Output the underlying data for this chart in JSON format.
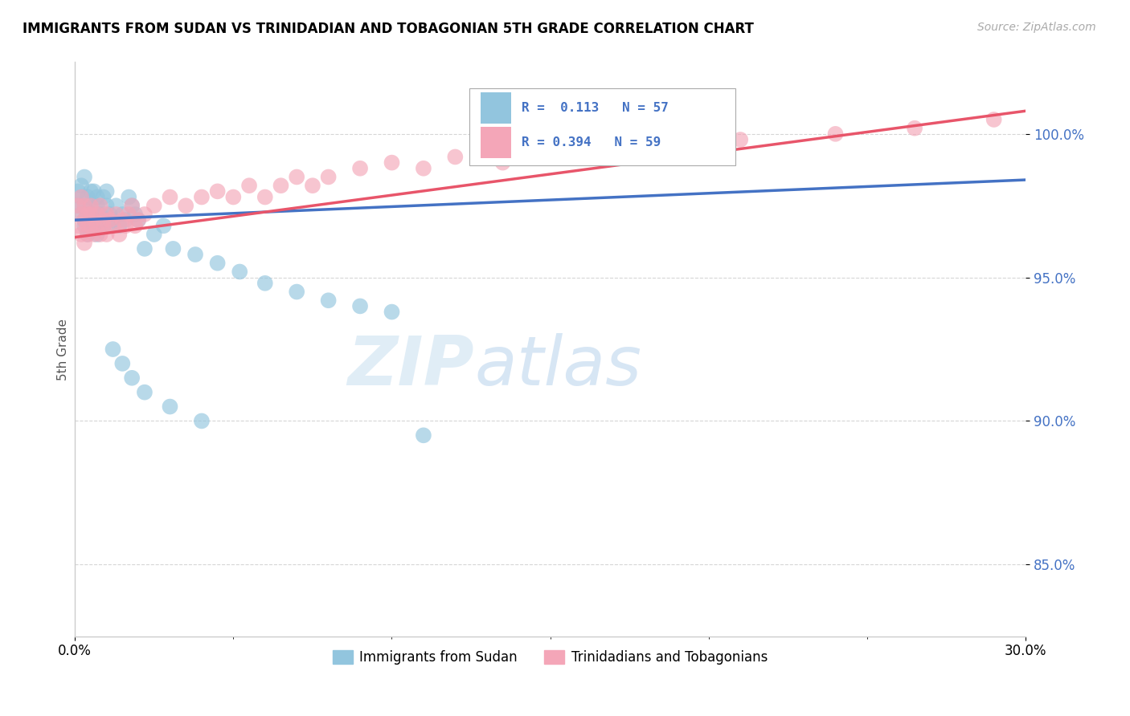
{
  "title": "IMMIGRANTS FROM SUDAN VS TRINIDADIAN AND TOBAGONIAN 5TH GRADE CORRELATION CHART",
  "source": "Source: ZipAtlas.com",
  "ylabel": "5th Grade",
  "yticks_labels": [
    "85.0%",
    "90.0%",
    "95.0%",
    "100.0%"
  ],
  "ytick_vals": [
    0.85,
    0.9,
    0.95,
    1.0
  ],
  "xlim": [
    0.0,
    0.3
  ],
  "ylim": [
    0.825,
    1.025
  ],
  "legend_label1": "Immigrants from Sudan",
  "legend_label2": "Trinidadians and Tobagonians",
  "color_blue": "#92c5de",
  "color_pink": "#f4a6b8",
  "color_blue_line": "#4472c4",
  "color_pink_line": "#e8556a",
  "color_ytick": "#4472c4",
  "watermark_zip": "ZIP",
  "watermark_atlas": "atlas",
  "blue_x": [
    0.001,
    0.001,
    0.002,
    0.002,
    0.002,
    0.003,
    0.003,
    0.003,
    0.003,
    0.004,
    0.004,
    0.004,
    0.005,
    0.005,
    0.005,
    0.006,
    0.006,
    0.006,
    0.007,
    0.007,
    0.007,
    0.008,
    0.008,
    0.009,
    0.009,
    0.01,
    0.01,
    0.011,
    0.011,
    0.012,
    0.013,
    0.014,
    0.015,
    0.016,
    0.017,
    0.018,
    0.019,
    0.02,
    0.022,
    0.025,
    0.028,
    0.031,
    0.038,
    0.045,
    0.052,
    0.06,
    0.07,
    0.08,
    0.09,
    0.1,
    0.012,
    0.015,
    0.018,
    0.022,
    0.03,
    0.04,
    0.11
  ],
  "blue_y": [
    0.975,
    0.98,
    0.978,
    0.972,
    0.982,
    0.968,
    0.975,
    0.985,
    0.97,
    0.972,
    0.978,
    0.965,
    0.98,
    0.97,
    0.975,
    0.968,
    0.972,
    0.98,
    0.975,
    0.965,
    0.978,
    0.97,
    0.972,
    0.978,
    0.968,
    0.975,
    0.98,
    0.972,
    0.968,
    0.97,
    0.975,
    0.968,
    0.972,
    0.97,
    0.978,
    0.975,
    0.972,
    0.97,
    0.96,
    0.965,
    0.968,
    0.96,
    0.958,
    0.955,
    0.952,
    0.948,
    0.945,
    0.942,
    0.94,
    0.938,
    0.925,
    0.92,
    0.915,
    0.91,
    0.905,
    0.9,
    0.895
  ],
  "pink_x": [
    0.001,
    0.001,
    0.002,
    0.002,
    0.002,
    0.003,
    0.003,
    0.003,
    0.004,
    0.004,
    0.004,
    0.005,
    0.005,
    0.005,
    0.006,
    0.006,
    0.007,
    0.007,
    0.008,
    0.008,
    0.009,
    0.009,
    0.01,
    0.01,
    0.011,
    0.012,
    0.013,
    0.014,
    0.015,
    0.016,
    0.017,
    0.018,
    0.019,
    0.02,
    0.022,
    0.025,
    0.03,
    0.035,
    0.04,
    0.045,
    0.05,
    0.055,
    0.06,
    0.065,
    0.07,
    0.075,
    0.08,
    0.09,
    0.1,
    0.11,
    0.12,
    0.135,
    0.15,
    0.17,
    0.19,
    0.21,
    0.24,
    0.265,
    0.29
  ],
  "pink_y": [
    0.968,
    0.975,
    0.972,
    0.965,
    0.978,
    0.962,
    0.97,
    0.975,
    0.968,
    0.972,
    0.965,
    0.975,
    0.968,
    0.972,
    0.965,
    0.97,
    0.972,
    0.968,
    0.975,
    0.965,
    0.97,
    0.968,
    0.972,
    0.965,
    0.97,
    0.968,
    0.972,
    0.965,
    0.97,
    0.968,
    0.972,
    0.975,
    0.968,
    0.97,
    0.972,
    0.975,
    0.978,
    0.975,
    0.978,
    0.98,
    0.978,
    0.982,
    0.978,
    0.982,
    0.985,
    0.982,
    0.985,
    0.988,
    0.99,
    0.988,
    0.992,
    0.99,
    0.993,
    0.995,
    0.997,
    0.998,
    1.0,
    1.002,
    1.005
  ],
  "blue_line_x0": 0.0,
  "blue_line_x1": 0.3,
  "blue_line_y0": 0.97,
  "blue_line_y1": 0.984,
  "pink_line_x0": 0.0,
  "pink_line_x1": 0.3,
  "pink_line_y0": 0.964,
  "pink_line_y1": 1.008
}
